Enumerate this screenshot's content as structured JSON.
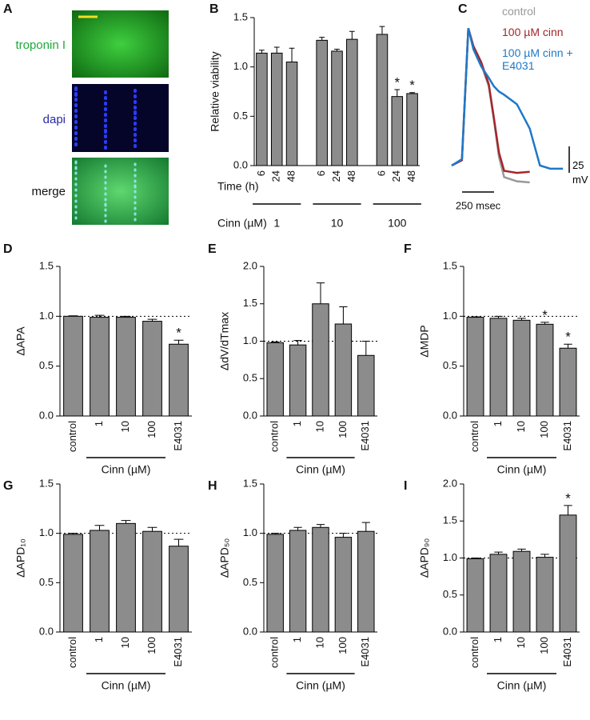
{
  "panel_a": {
    "panel": "A",
    "labels": [
      "troponin I",
      "dapi",
      "merge"
    ]
  },
  "chart_data": [
    {
      "type": "bar",
      "panel": "B",
      "ylabel": "Relative viability",
      "xlabel": "Time (h)",
      "group_label": "Cinn (µM)",
      "categories": [
        "6",
        "24",
        "48",
        "6",
        "24",
        "48",
        "6",
        "24",
        "48"
      ],
      "groups": [
        "1",
        "10",
        "100"
      ],
      "values": [
        1.14,
        1.14,
        1.05,
        1.27,
        1.16,
        1.28,
        1.33,
        0.7,
        0.73
      ],
      "errors": [
        0.03,
        0.06,
        0.14,
        0.03,
        0.02,
        0.08,
        0.08,
        0.07,
        0.01
      ],
      "significance": [
        null,
        null,
        null,
        null,
        null,
        null,
        null,
        "*",
        "*"
      ],
      "color": "#8c8c8c",
      "ylim": [
        0,
        1.5
      ],
      "yticks": [
        {
          "value": 0,
          "label": "0.0"
        },
        0.5,
        {
          "value": 1,
          "label": "1.0"
        },
        1.5
      ]
    },
    {
      "type": "line",
      "panel": "C",
      "x": [
        -130,
        -50,
        0,
        40,
        100,
        160,
        200,
        240,
        280,
        380,
        480,
        560,
        640,
        740
      ],
      "series": [
        {
          "name": "control",
          "color": "#999999",
          "values": [
            -80,
            -75,
            50,
            32,
            16,
            -5,
            -37,
            -72,
            -91,
            -95,
            -96,
            null,
            null,
            null
          ]
        },
        {
          "name": "100 µM cinn",
          "color": "#a3262a",
          "values": [
            -80,
            -75,
            50,
            33,
            18,
            -3,
            -35,
            -68,
            -85,
            -87,
            -86,
            null,
            null,
            null
          ]
        },
        {
          "name": "100 µM cinn + E4031",
          "color": "#1f78c8",
          "values": [
            -80,
            -74,
            50,
            30,
            14,
            3,
            -5,
            -10,
            -13,
            -22,
            -45,
            -80,
            -83,
            -83
          ]
        }
      ],
      "scale_x": {
        "value": 250,
        "label": "250 msec"
      },
      "scale_y": {
        "value": 25,
        "label": "25 mV"
      }
    },
    {
      "type": "bar",
      "panel": "D",
      "ylabel": "ΔAPA",
      "group_label": "Cinn (µM)",
      "categories": [
        "control",
        "1",
        "10",
        "100",
        "E4031"
      ],
      "values": [
        1.0,
        0.99,
        0.99,
        0.95,
        0.72
      ],
      "errors": [
        0.005,
        0.02,
        0.01,
        0.02,
        0.04
      ],
      "significance": [
        null,
        null,
        null,
        null,
        "*"
      ],
      "reference_line": 1,
      "color": "#8c8c8c",
      "ylim": [
        0,
        1.5
      ],
      "yticks": [
        {
          "value": 0,
          "label": "0.0"
        },
        0.5,
        {
          "value": 1,
          "label": "1.0"
        },
        1.5
      ]
    },
    {
      "type": "bar",
      "panel": "E",
      "ylabel": "ΔdV/dTmax",
      "group_label": "Cinn (µM)",
      "categories": [
        "control",
        "1",
        "10",
        "100",
        "E4031"
      ],
      "values": [
        0.98,
        0.95,
        1.5,
        1.23,
        0.81
      ],
      "errors": [
        0.01,
        0.06,
        0.28,
        0.23,
        0.19
      ],
      "significance": [
        null,
        null,
        null,
        null,
        null
      ],
      "reference_line": 1,
      "color": "#8c8c8c",
      "ylim": [
        0,
        2
      ],
      "yticks": [
        {
          "value": 0,
          "label": "0.0"
        },
        0.5,
        {
          "value": 1,
          "label": "1.0"
        },
        1.5,
        {
          "value": 2,
          "label": "2.0"
        }
      ]
    },
    {
      "type": "bar",
      "panel": "F",
      "ylabel": "ΔMDP",
      "group_label": "Cinn (µM)",
      "categories": [
        "control",
        "1",
        "10",
        "100",
        "E4031"
      ],
      "values": [
        0.99,
        0.98,
        0.96,
        0.92,
        0.68
      ],
      "errors": [
        0.005,
        0.02,
        0.02,
        0.02,
        0.04
      ],
      "significance": [
        null,
        null,
        null,
        "*",
        "*"
      ],
      "reference_line": 1,
      "color": "#8c8c8c",
      "ylim": [
        0,
        1.5
      ],
      "yticks": [
        {
          "value": 0,
          "label": "0.0"
        },
        0.5,
        {
          "value": 1,
          "label": "1.0"
        },
        1.5
      ]
    },
    {
      "type": "bar",
      "panel": "G",
      "ylabel": "ΔAPD₁₀",
      "group_label": "Cinn (µM)",
      "categories": [
        "control",
        "1",
        "10",
        "100",
        "E4031"
      ],
      "values": [
        0.99,
        1.03,
        1.1,
        1.02,
        0.87
      ],
      "errors": [
        0.01,
        0.05,
        0.03,
        0.04,
        0.07
      ],
      "significance": [
        null,
        null,
        null,
        null,
        null
      ],
      "reference_line": 1,
      "color": "#8c8c8c",
      "ylim": [
        0,
        1.5
      ],
      "yticks": [
        {
          "value": 0,
          "label": "0.0"
        },
        0.5,
        {
          "value": 1,
          "label": "1.0"
        },
        1.5
      ]
    },
    {
      "type": "bar",
      "panel": "H",
      "ylabel": "ΔAPD₅₀",
      "group_label": "Cinn (µM)",
      "categories": [
        "control",
        "1",
        "10",
        "100",
        "E4031"
      ],
      "values": [
        0.99,
        1.03,
        1.06,
        0.96,
        1.02
      ],
      "errors": [
        0.01,
        0.03,
        0.03,
        0.04,
        0.09
      ],
      "significance": [
        null,
        null,
        null,
        null,
        null
      ],
      "reference_line": 1,
      "color": "#8c8c8c",
      "ylim": [
        0,
        1.5
      ],
      "yticks": [
        {
          "value": 0,
          "label": "0.0"
        },
        0.5,
        {
          "value": 1,
          "label": "1.0"
        },
        1.5
      ]
    },
    {
      "type": "bar",
      "panel": "I",
      "ylabel": "ΔAPD₉₀",
      "group_label": "Cinn (µM)",
      "categories": [
        "control",
        "1",
        "10",
        "100",
        "E4031"
      ],
      "values": [
        0.99,
        1.05,
        1.09,
        1.01,
        1.58
      ],
      "errors": [
        0.01,
        0.03,
        0.03,
        0.04,
        0.13
      ],
      "significance": [
        null,
        null,
        null,
        null,
        "*"
      ],
      "reference_line": 1,
      "color": "#8c8c8c",
      "ylim": [
        0,
        2
      ],
      "yticks": [
        {
          "value": 0,
          "label": "0.0"
        },
        0.5,
        {
          "value": 1,
          "label": "1.0"
        },
        1.5,
        {
          "value": 2,
          "label": "2.0"
        }
      ]
    }
  ]
}
